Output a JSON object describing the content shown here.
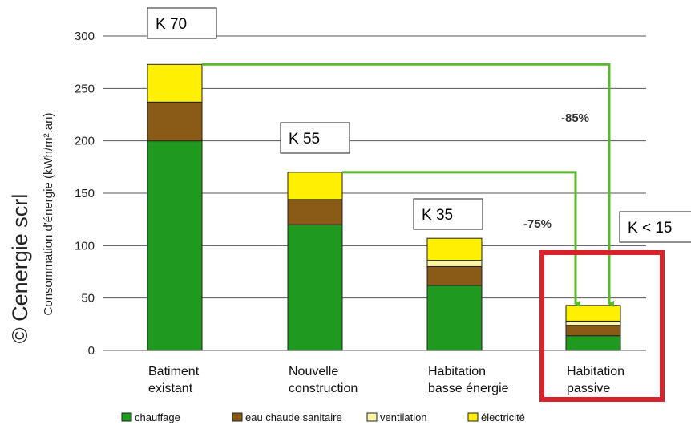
{
  "chart_data": {
    "type": "bar",
    "stacked": true,
    "categories": [
      [
        "Batiment",
        "existant"
      ],
      [
        "Nouvelle",
        "construction"
      ],
      [
        "Habitation",
        "basse énergie"
      ],
      [
        "Habitation",
        "passive"
      ]
    ],
    "series": [
      {
        "name": "chauffage",
        "color": "#1f9a1f",
        "values": [
          200,
          120,
          62,
          14
        ]
      },
      {
        "name": "eau chaude sanitaire",
        "color": "#8a5a17",
        "values": [
          37,
          24,
          18,
          10
        ]
      },
      {
        "name": "ventilation",
        "color": "#fbf7a6",
        "values": [
          0,
          0,
          6,
          4
        ]
      },
      {
        "name": "électricité",
        "color": "#ffef00",
        "values": [
          36,
          26,
          21,
          15
        ]
      }
    ],
    "ylabel": "Consommation d'énergie (kWh/m².an)",
    "ylim": [
      0,
      300
    ],
    "yticks": [
      0,
      50,
      100,
      150,
      200,
      250,
      300
    ],
    "grid": true,
    "legend_position": "bottom",
    "k_labels": [
      "K 70",
      "K 55",
      "K 35",
      "K < 15"
    ],
    "annotations": [
      {
        "text": "-85%",
        "from_category": 0,
        "to_category": 3
      },
      {
        "text": "-75%",
        "from_category": 1,
        "to_category": 3
      }
    ],
    "highlight_category": 3,
    "highlight_color": "#d8232a",
    "arrow_color": "#59b82c"
  },
  "copyright": "© Cenergie scrl"
}
